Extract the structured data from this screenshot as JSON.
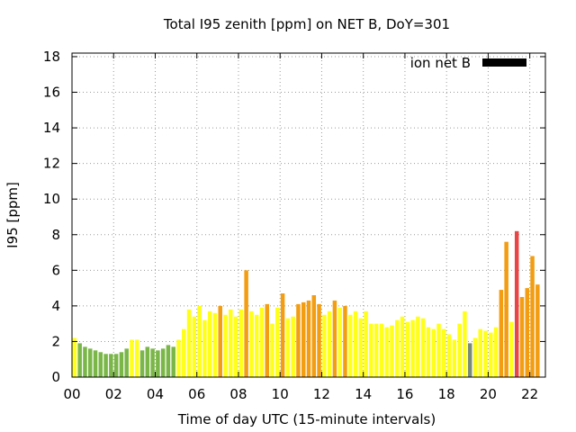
{
  "chart_data": {
    "type": "bar",
    "title": "Total I95 zenith [ppm] on NET B, DoY=301",
    "xlabel": "Time of day UTC (15-minute intervals)",
    "ylabel": "I95 [ppm]",
    "xlim": [
      0,
      22.75
    ],
    "ylim": [
      0,
      18.2
    ],
    "xticks": [
      "00",
      "02",
      "04",
      "06",
      "08",
      "10",
      "12",
      "14",
      "16",
      "18",
      "20",
      "22"
    ],
    "yticks": [
      "0",
      "2",
      "4",
      "6",
      "8",
      "10",
      "12",
      "14",
      "16",
      "18"
    ],
    "grid": true,
    "legend": {
      "label": "ion net B",
      "color": "#000000",
      "placement": "top-right"
    },
    "interval_hours": 0.25,
    "x_start": 0,
    "values": [
      2.2,
      1.9,
      1.7,
      1.6,
      1.5,
      1.4,
      1.3,
      1.3,
      1.3,
      1.4,
      1.6,
      2.1,
      2.1,
      1.5,
      1.7,
      1.6,
      1.5,
      1.6,
      1.8,
      1.7,
      2.1,
      2.7,
      3.8,
      3.4,
      4.0,
      3.2,
      3.7,
      3.6,
      4.0,
      3.5,
      3.8,
      3.4,
      3.8,
      6.0,
      3.7,
      3.5,
      3.9,
      4.1,
      3.0,
      3.9,
      4.7,
      3.3,
      3.4,
      4.1,
      4.2,
      4.3,
      4.6,
      4.1,
      3.5,
      3.7,
      4.3,
      3.9,
      4.0,
      3.5,
      3.7,
      3.3,
      3.7,
      3.0,
      3.0,
      3.0,
      2.8,
      2.9,
      3.2,
      3.4,
      3.1,
      3.2,
      3.4,
      3.3,
      2.8,
      2.7,
      3.0,
      2.7,
      2.4,
      2.1,
      3.0,
      3.7,
      1.9,
      2.2,
      2.7,
      2.6,
      2.5,
      2.8,
      4.9,
      7.6,
      3.1,
      8.2,
      4.5,
      5.0,
      6.8,
      5.2
    ],
    "levels": [
      "yellow",
      "green",
      "green",
      "green",
      "green",
      "green",
      "green",
      "green",
      "green",
      "green",
      "green",
      "yellow",
      "yellow",
      "green",
      "green",
      "green",
      "green",
      "green",
      "green",
      "green",
      "yellow",
      "yellow",
      "yellow",
      "yellow",
      "yellow",
      "yellow",
      "yellow",
      "yellow",
      "orange",
      "yellow",
      "yellow",
      "yellow",
      "yellow",
      "orange",
      "yellow",
      "yellow",
      "yellow",
      "orange",
      "yellow",
      "yellow",
      "orange",
      "yellow",
      "yellow",
      "orange",
      "orange",
      "orange",
      "orange",
      "orange",
      "yellow",
      "yellow",
      "orange",
      "yellow",
      "orange",
      "yellow",
      "yellow",
      "yellow",
      "yellow",
      "yellow",
      "yellow",
      "yellow",
      "yellow",
      "yellow",
      "yellow",
      "yellow",
      "yellow",
      "yellow",
      "yellow",
      "yellow",
      "yellow",
      "yellow",
      "yellow",
      "yellow",
      "yellow",
      "yellow",
      "yellow",
      "yellow",
      "gray",
      "yellow",
      "yellow",
      "yellow",
      "yellow",
      "yellow",
      "orange",
      "orange",
      "yellow",
      "red",
      "orange",
      "orange",
      "orange",
      "orange"
    ],
    "level_colors": {
      "green": "#7ab648",
      "yellow": "#ffff1a",
      "orange": "#f29d12",
      "red": "#e84646",
      "gray": "#7a8a7a"
    }
  }
}
